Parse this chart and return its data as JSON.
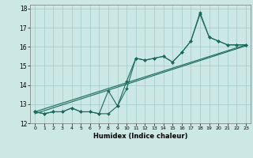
{
  "title": "",
  "xlabel": "Humidex (Indice chaleur)",
  "ylabel": "",
  "bg_color": "#cce8e4",
  "grid_color": "#aacfcb",
  "line_color": "#1a6b5a",
  "xlim": [
    -0.5,
    23.5
  ],
  "ylim": [
    12,
    18.2
  ],
  "yticks": [
    12,
    13,
    14,
    15,
    16,
    17,
    18
  ],
  "xticks": [
    0,
    1,
    2,
    3,
    4,
    5,
    6,
    7,
    8,
    9,
    10,
    11,
    12,
    13,
    14,
    15,
    16,
    17,
    18,
    19,
    20,
    21,
    22,
    23
  ],
  "line1_x": [
    0,
    1,
    2,
    3,
    4,
    5,
    6,
    7,
    8,
    9,
    10,
    11,
    12,
    13,
    14,
    15,
    16,
    17,
    18,
    19,
    20,
    21,
    22,
    23
  ],
  "line1_y": [
    12.6,
    12.5,
    12.6,
    12.6,
    12.8,
    12.6,
    12.6,
    12.5,
    12.5,
    12.9,
    13.8,
    15.4,
    15.3,
    15.4,
    15.5,
    15.2,
    15.7,
    16.3,
    17.7,
    16.5,
    16.3,
    16.1,
    16.1,
    16.1
  ],
  "line2_x": [
    0,
    1,
    2,
    3,
    4,
    5,
    6,
    7,
    8,
    9,
    10,
    11,
    12,
    13,
    14,
    15,
    16,
    17,
    18,
    19,
    20,
    21,
    22,
    23
  ],
  "line2_y": [
    12.6,
    12.5,
    12.6,
    12.6,
    12.8,
    12.6,
    12.6,
    12.5,
    13.7,
    12.9,
    14.2,
    15.4,
    15.3,
    15.4,
    15.5,
    15.2,
    15.7,
    16.3,
    17.8,
    16.5,
    16.3,
    16.1,
    16.1,
    16.1
  ],
  "line3_x": [
    0,
    23
  ],
  "line3_y": [
    12.6,
    16.1
  ],
  "line4_x": [
    0,
    23
  ],
  "line4_y": [
    12.5,
    16.05
  ]
}
